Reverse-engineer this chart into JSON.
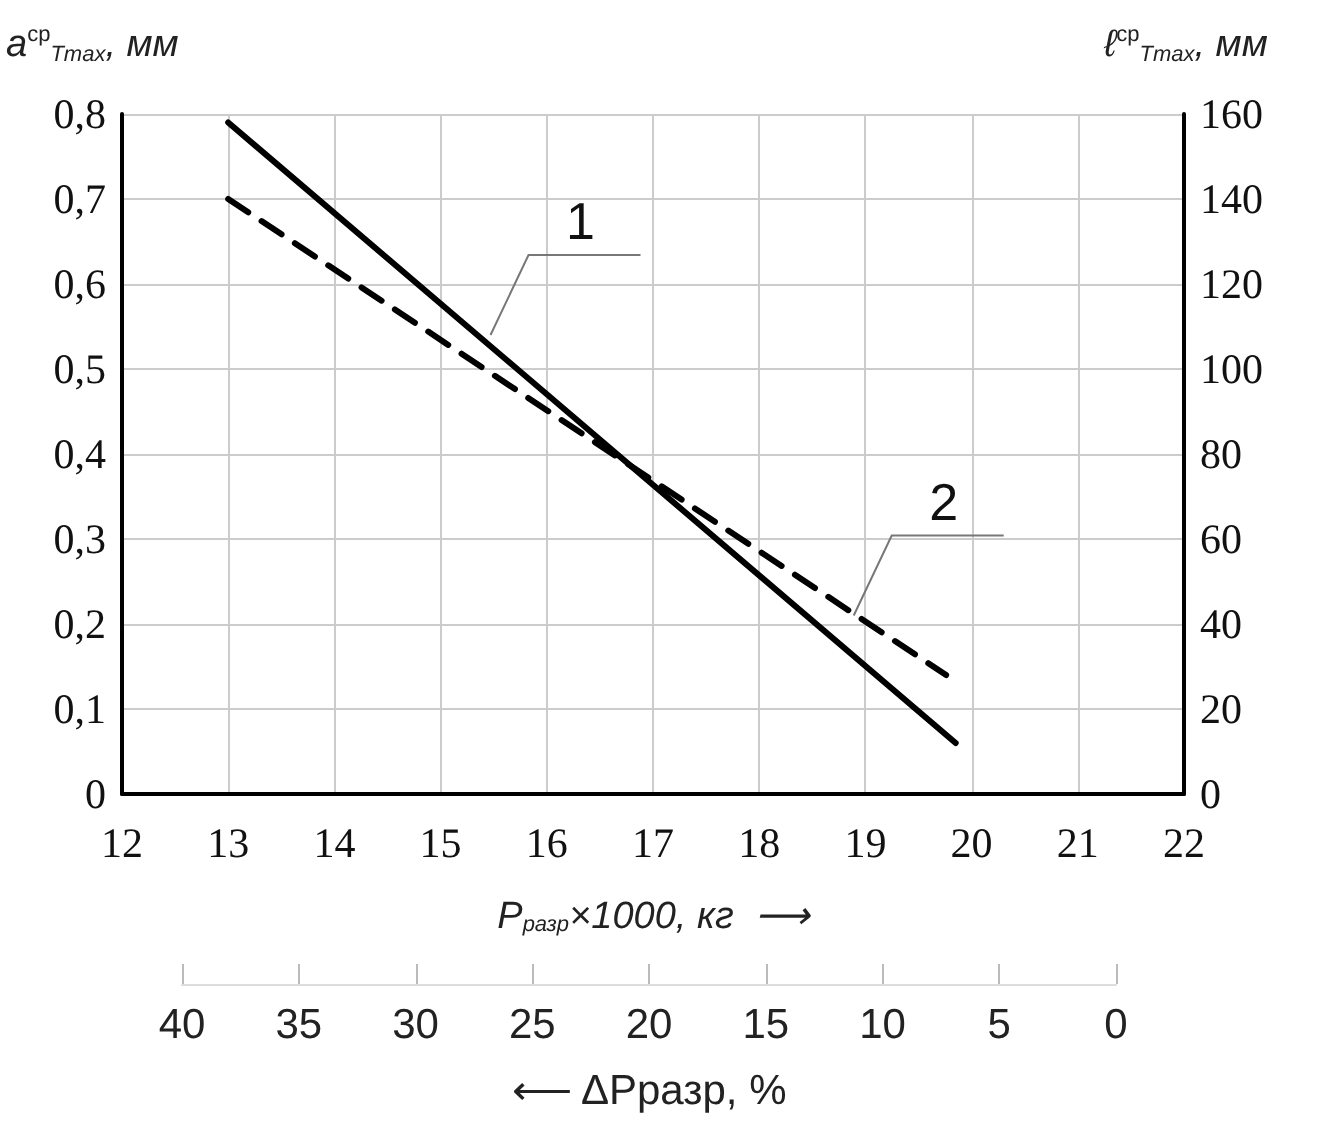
{
  "chart_data": {
    "type": "line",
    "ylabel": "a$^{ср}$$_{Tmax}$, мм",
    "y2label": "ℓ$^{ср}$$_{Tmax}$, мм",
    "xlabel": "P$_{разр}$×1000, кг  ⟶",
    "x2label": "⟵ ΔPразр, %",
    "xlim": [
      12,
      22
    ],
    "xticks": [
      12,
      13,
      14,
      15,
      16,
      17,
      18,
      19,
      20,
      21,
      22
    ],
    "x2lim": [
      40,
      0
    ],
    "x2ticks": [
      40,
      35,
      30,
      25,
      20,
      15,
      10,
      5,
      0
    ],
    "ylim": [
      0,
      0.8
    ],
    "yticks": [
      0,
      {
        "value": 0.1,
        "label": "0,1"
      },
      {
        "value": 0.2,
        "label": "0,2"
      },
      {
        "value": 0.3,
        "label": "0,3"
      },
      {
        "value": 0.4,
        "label": "0,4"
      },
      {
        "value": 0.5,
        "label": "0,5"
      },
      {
        "value": 0.6,
        "label": "0,6"
      },
      {
        "value": 0.7,
        "label": "0,7"
      },
      {
        "value": 0.8,
        "label": "0,8"
      }
    ],
    "y2lim": [
      0,
      160
    ],
    "y2ticks": [
      0,
      20,
      40,
      60,
      80,
      100,
      120,
      140,
      160
    ],
    "grid": true,
    "marker": "none",
    "series": [
      {
        "x": [
          13,
          19.85
        ],
        "values": [
          0.79,
          0.06
        ],
        "color": "#000000",
        "line_style": "solid"
      },
      {
        "x": [
          13,
          19.76
        ],
        "values": [
          0.7,
          0.14
        ],
        "color": "#000000",
        "line_style": "dashed"
      }
    ],
    "annotations": [
      {
        "text": "1",
        "x": 15.47,
        "y": 0.54
      },
      {
        "text": "2",
        "x": 18.89,
        "y": 0.21
      }
    ]
  }
}
